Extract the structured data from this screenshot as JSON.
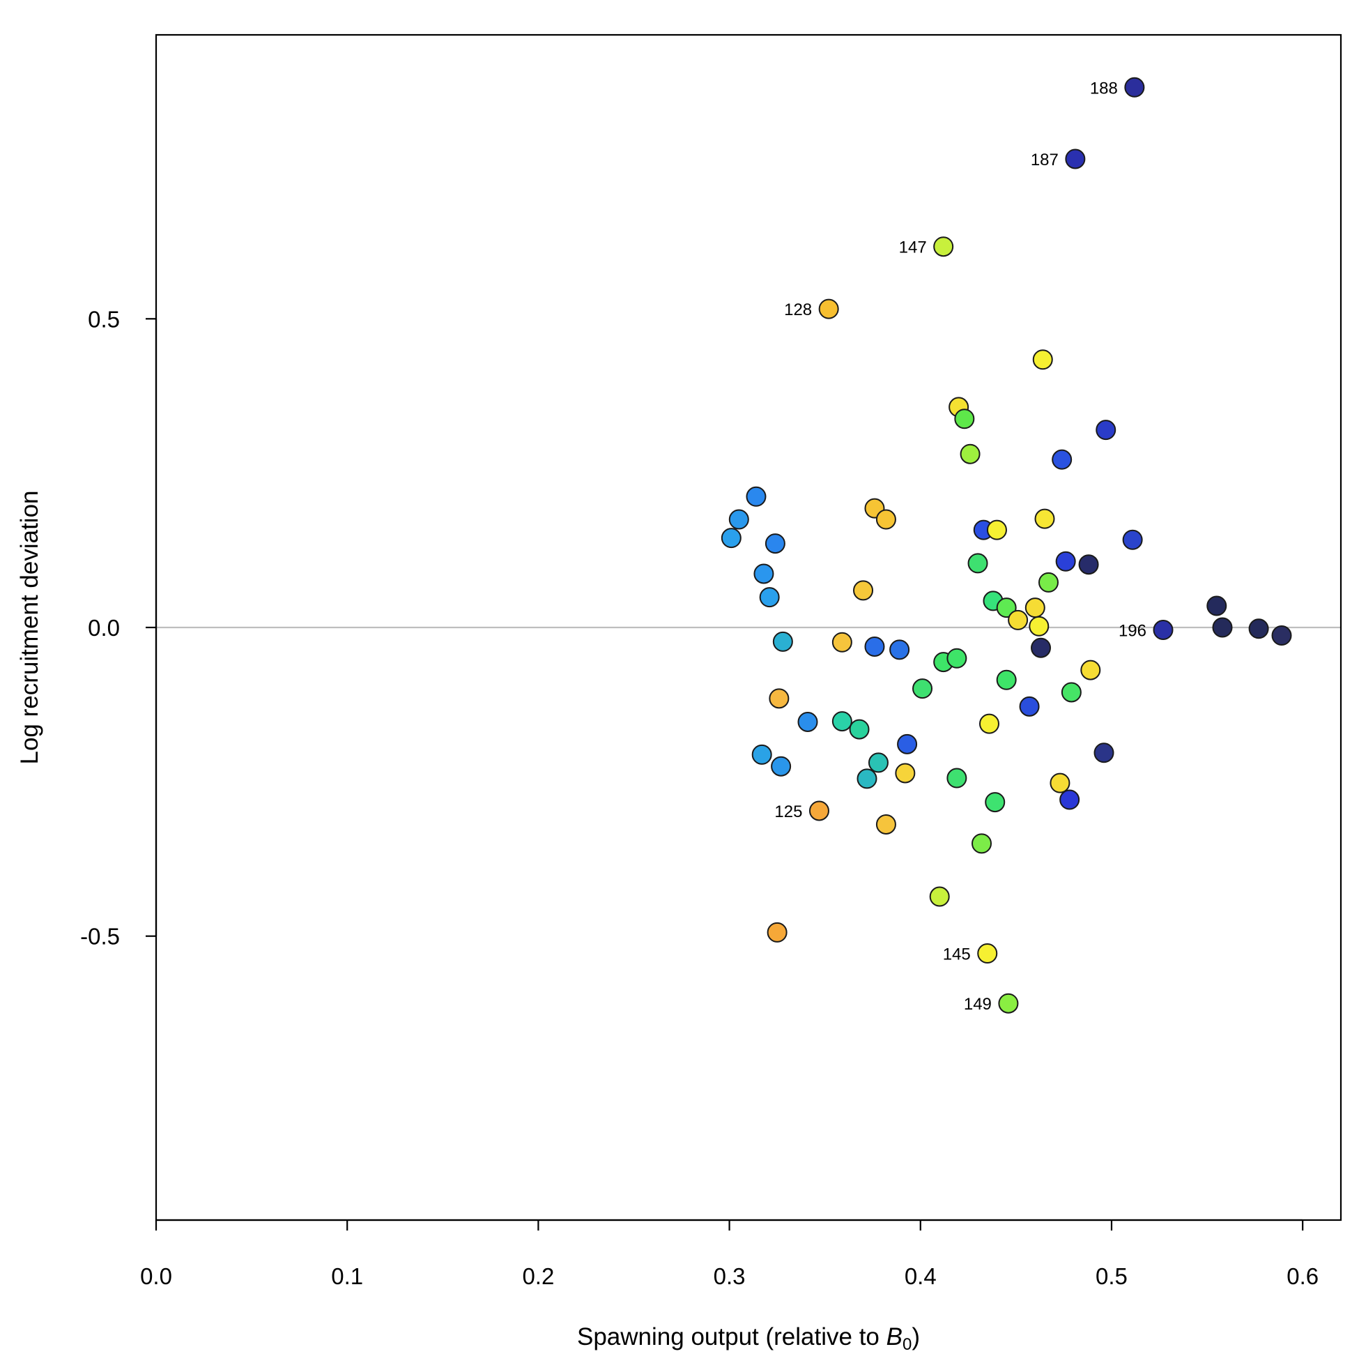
{
  "chart_data": {
    "type": "scatter",
    "title": "",
    "xlabel": "Spawning output (relative to B0)",
    "xlabel_parts": {
      "main": "Spawning output (relative to ",
      "symbol": "B",
      "subscript": "0",
      "close": ")"
    },
    "ylabel": "Log recruitment deviation",
    "xlim": [
      0.0,
      0.62
    ],
    "ylim": [
      -0.96,
      0.96
    ],
    "xticks": [
      0.0,
      0.1,
      0.2,
      0.3,
      0.4,
      0.5,
      0.6
    ],
    "xtick_labels": [
      "0.0",
      "0.1",
      "0.2",
      "0.3",
      "0.4",
      "0.5",
      "0.6"
    ],
    "yticks": [
      -0.5,
      0.0,
      0.5
    ],
    "ytick_labels": [
      "-0.5",
      "0.0",
      "0.5"
    ],
    "reference_line": {
      "y": 0.0,
      "color": "#bebebe"
    },
    "grid": false,
    "legend": "none",
    "point_outline_color": "#1a1a1a",
    "points": [
      {
        "x": 0.512,
        "y": 0.875,
        "color": "#2b2e9c",
        "label": "188"
      },
      {
        "x": 0.481,
        "y": 0.759,
        "color": "#2a30b0",
        "label": "187"
      },
      {
        "x": 0.412,
        "y": 0.617,
        "color": "#c8f03c",
        "label": "147"
      },
      {
        "x": 0.352,
        "y": 0.516,
        "color": "#f7bf30",
        "label": "128"
      },
      {
        "x": 0.464,
        "y": 0.434,
        "color": "#f6f032"
      },
      {
        "x": 0.42,
        "y": 0.357,
        "color": "#f5e132"
      },
      {
        "x": 0.423,
        "y": 0.338,
        "color": "#5ee84a"
      },
      {
        "x": 0.497,
        "y": 0.32,
        "color": "#2a3cc8"
      },
      {
        "x": 0.426,
        "y": 0.281,
        "color": "#9ef03e"
      },
      {
        "x": 0.474,
        "y": 0.272,
        "color": "#2a52e0"
      },
      {
        "x": 0.314,
        "y": 0.212,
        "color": "#2a88ee"
      },
      {
        "x": 0.376,
        "y": 0.193,
        "color": "#f6c434"
      },
      {
        "x": 0.305,
        "y": 0.175,
        "color": "#2a98ec"
      },
      {
        "x": 0.382,
        "y": 0.175,
        "color": "#f6c434"
      },
      {
        "x": 0.465,
        "y": 0.176,
        "color": "#f6e634"
      },
      {
        "x": 0.433,
        "y": 0.158,
        "color": "#2a4ee2"
      },
      {
        "x": 0.44,
        "y": 0.158,
        "color": "#f6f032"
      },
      {
        "x": 0.301,
        "y": 0.145,
        "color": "#2aa0ec"
      },
      {
        "x": 0.324,
        "y": 0.136,
        "color": "#2a86ee"
      },
      {
        "x": 0.511,
        "y": 0.142,
        "color": "#2a44cc"
      },
      {
        "x": 0.476,
        "y": 0.107,
        "color": "#2a40d8"
      },
      {
        "x": 0.488,
        "y": 0.102,
        "color": "#272c6a"
      },
      {
        "x": 0.43,
        "y": 0.104,
        "color": "#3ee070"
      },
      {
        "x": 0.318,
        "y": 0.087,
        "color": "#2a96ee"
      },
      {
        "x": 0.467,
        "y": 0.073,
        "color": "#78ec48"
      },
      {
        "x": 0.37,
        "y": 0.06,
        "color": "#f6c83a"
      },
      {
        "x": 0.321,
        "y": 0.049,
        "color": "#2aa0ec"
      },
      {
        "x": 0.438,
        "y": 0.043,
        "color": "#36e27a"
      },
      {
        "x": 0.555,
        "y": 0.035,
        "color": "#242a5c"
      },
      {
        "x": 0.445,
        "y": 0.032,
        "color": "#5eea52"
      },
      {
        "x": 0.46,
        "y": 0.032,
        "color": "#f6dc34"
      },
      {
        "x": 0.451,
        "y": 0.012,
        "color": "#f6dc32"
      },
      {
        "x": 0.462,
        "y": 0.002,
        "color": "#f6f032"
      },
      {
        "x": 0.527,
        "y": -0.004,
        "color": "#2a30a6",
        "label": "196"
      },
      {
        "x": 0.558,
        "y": 0.0,
        "color": "#242a5a"
      },
      {
        "x": 0.577,
        "y": -0.002,
        "color": "#242a5a"
      },
      {
        "x": 0.589,
        "y": -0.013,
        "color": "#2a2e62"
      },
      {
        "x": 0.328,
        "y": -0.023,
        "color": "#2ab0d2"
      },
      {
        "x": 0.359,
        "y": -0.024,
        "color": "#f6c43c"
      },
      {
        "x": 0.376,
        "y": -0.031,
        "color": "#2a6ee8"
      },
      {
        "x": 0.389,
        "y": -0.036,
        "color": "#2a72e6"
      },
      {
        "x": 0.463,
        "y": -0.033,
        "color": "#272c66"
      },
      {
        "x": 0.412,
        "y": -0.056,
        "color": "#3ee468"
      },
      {
        "x": 0.419,
        "y": -0.05,
        "color": "#3ee468"
      },
      {
        "x": 0.489,
        "y": -0.069,
        "color": "#f6dc34"
      },
      {
        "x": 0.445,
        "y": -0.085,
        "color": "#3ee468"
      },
      {
        "x": 0.401,
        "y": -0.099,
        "color": "#3ee070"
      },
      {
        "x": 0.479,
        "y": -0.105,
        "color": "#46e466"
      },
      {
        "x": 0.326,
        "y": -0.115,
        "color": "#f6b840"
      },
      {
        "x": 0.457,
        "y": -0.128,
        "color": "#2a4edc"
      },
      {
        "x": 0.341,
        "y": -0.153,
        "color": "#2a8eec"
      },
      {
        "x": 0.359,
        "y": -0.152,
        "color": "#2ad2a8"
      },
      {
        "x": 0.436,
        "y": -0.156,
        "color": "#f6f032"
      },
      {
        "x": 0.368,
        "y": -0.165,
        "color": "#2ad29c"
      },
      {
        "x": 0.393,
        "y": -0.189,
        "color": "#2a5ee4"
      },
      {
        "x": 0.496,
        "y": -0.203,
        "color": "#2a3488"
      },
      {
        "x": 0.317,
        "y": -0.206,
        "color": "#2aa2e6"
      },
      {
        "x": 0.378,
        "y": -0.219,
        "color": "#2ac2b4"
      },
      {
        "x": 0.327,
        "y": -0.225,
        "color": "#2a96ea"
      },
      {
        "x": 0.392,
        "y": -0.236,
        "color": "#f6d43a"
      },
      {
        "x": 0.372,
        "y": -0.245,
        "color": "#2ab8c2"
      },
      {
        "x": 0.419,
        "y": -0.244,
        "color": "#3ee070"
      },
      {
        "x": 0.473,
        "y": -0.252,
        "color": "#f6dc34"
      },
      {
        "x": 0.478,
        "y": -0.279,
        "color": "#2a38d6"
      },
      {
        "x": 0.439,
        "y": -0.283,
        "color": "#3ee270"
      },
      {
        "x": 0.347,
        "y": -0.297,
        "color": "#f6a83a",
        "label": "125"
      },
      {
        "x": 0.382,
        "y": -0.319,
        "color": "#f6c43c"
      },
      {
        "x": 0.432,
        "y": -0.35,
        "color": "#7cec48"
      },
      {
        "x": 0.41,
        "y": -0.436,
        "color": "#c8f03c"
      },
      {
        "x": 0.325,
        "y": -0.494,
        "color": "#f6a838"
      },
      {
        "x": 0.435,
        "y": -0.528,
        "color": "#f6f032",
        "label": "145"
      },
      {
        "x": 0.446,
        "y": -0.609,
        "color": "#8aee42",
        "label": "149"
      }
    ]
  }
}
